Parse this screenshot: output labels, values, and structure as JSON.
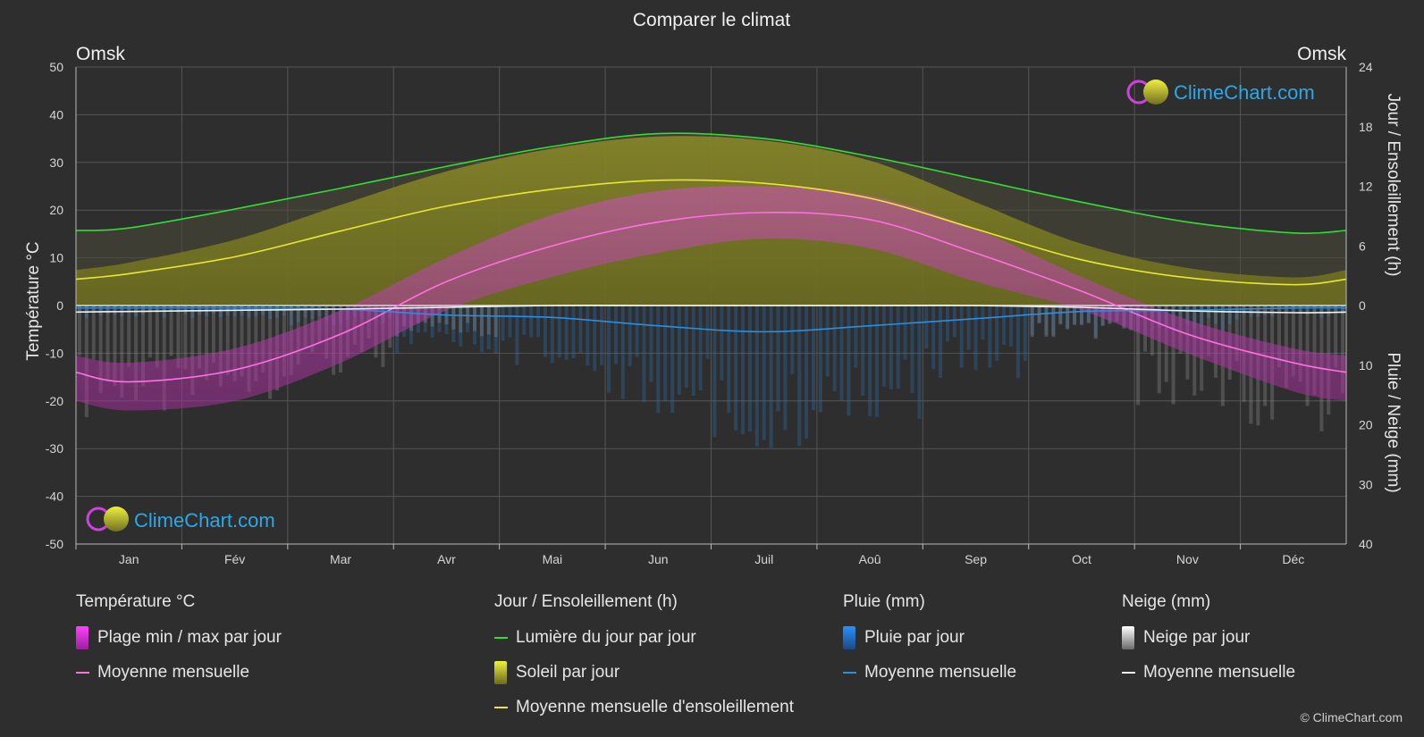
{
  "page": {
    "title": "Comparer le climat",
    "location_left": "Omsk",
    "location_right": "Omsk",
    "watermark": "ClimeChart.com",
    "copyright": "© ClimeChart.com"
  },
  "chart_data": {
    "type": "area",
    "title": "Comparer le climat",
    "categories": [
      "Jan",
      "Fév",
      "Mar",
      "Avr",
      "Mai",
      "Jun",
      "Juil",
      "Aoû",
      "Sep",
      "Oct",
      "Nov",
      "Déc"
    ],
    "y_left": {
      "label": "Température °C",
      "range": [
        -50,
        50
      ],
      "ticks": [
        50,
        40,
        30,
        20,
        10,
        0,
        -10,
        -20,
        -30,
        -40,
        -50
      ]
    },
    "y_right_top": {
      "label": "Jour / Ensoleillement (h)",
      "range": [
        0,
        24
      ],
      "ticks": [
        24,
        18,
        12,
        6,
        0
      ]
    },
    "y_right_bottom": {
      "label": "Pluie / Neige (mm)",
      "range": [
        0,
        40
      ],
      "ticks": [
        10,
        20,
        30,
        40
      ]
    },
    "grid": true,
    "series": [
      {
        "name": "Lumière du jour par jour",
        "unit": "h",
        "color": "#33dd33",
        "values": [
          7.8,
          9.7,
          11.8,
          14.0,
          16.0,
          17.3,
          16.8,
          15.0,
          12.7,
          10.4,
          8.4,
          7.3
        ]
      },
      {
        "name": "Moyenne mensuelle d'ensoleillement",
        "unit": "h",
        "color": "#e8e830",
        "values": [
          3.2,
          4.9,
          7.5,
          10.0,
          11.7,
          12.6,
          12.3,
          10.8,
          7.7,
          4.6,
          2.8,
          2.1
        ]
      },
      {
        "name": "Moyenne mensuelle",
        "group": "Température °C",
        "unit": "°C",
        "color": "#ff70e0",
        "values": [
          -16,
          -13.5,
          -6,
          5,
          12.5,
          17.5,
          19.5,
          18,
          11,
          3,
          -6,
          -12
        ]
      },
      {
        "name": "Plage min / max par jour (max)",
        "unit": "°C",
        "values": [
          -12,
          -9,
          -1,
          10,
          19,
          24,
          25,
          23,
          16,
          6,
          -3,
          -9
        ]
      },
      {
        "name": "Plage min / max par jour (min)",
        "unit": "°C",
        "values": [
          -22,
          -20,
          -12,
          -1,
          6,
          11,
          14,
          12,
          5,
          -1,
          -10,
          -18
        ]
      },
      {
        "name": "Moyenne mensuelle",
        "group": "Pluie (mm)",
        "unit": "mm",
        "color": "#2a8fe0",
        "values": [
          0.4,
          0.4,
          0.6,
          1.6,
          2.0,
          3.4,
          4.4,
          3.4,
          2.2,
          1.0,
          0.8,
          0.4
        ]
      },
      {
        "name": "Moyenne mensuelle",
        "group": "Neige (mm)",
        "unit": "mm",
        "color": "#f2f2f2",
        "values": [
          1.0,
          0.8,
          0.6,
          0.3,
          0.0,
          0.0,
          0.0,
          0.0,
          0.0,
          0.3,
          0.9,
          1.2
        ]
      }
    ]
  },
  "legend": {
    "groups": [
      {
        "title": "Température °C",
        "items": [
          {
            "label": "Plage min / max par jour",
            "kind": "box",
            "color": "#d84fd8"
          },
          {
            "label": "Moyenne mensuelle",
            "kind": "line",
            "color": "#ff70e0"
          }
        ]
      },
      {
        "title": "Jour / Ensoleillement (h)",
        "items": [
          {
            "label": "Lumière du jour par jour",
            "kind": "line",
            "color": "#33dd33"
          },
          {
            "label": "Soleil par jour",
            "kind": "box",
            "color": "#c8c832"
          },
          {
            "label": "Moyenne mensuelle d'ensoleillement",
            "kind": "line",
            "color": "#e8e830"
          }
        ]
      },
      {
        "title": "Pluie (mm)",
        "items": [
          {
            "label": "Pluie par jour",
            "kind": "box",
            "color": "#2a7fd0"
          },
          {
            "label": "Moyenne mensuelle",
            "kind": "line",
            "color": "#2a8fe0"
          }
        ]
      },
      {
        "title": "Neige (mm)",
        "items": [
          {
            "label": "Neige par jour",
            "kind": "box",
            "color": "#d8d8d8"
          },
          {
            "label": "Moyenne mensuelle",
            "kind": "line",
            "color": "#f2f2f2"
          }
        ]
      }
    ]
  }
}
